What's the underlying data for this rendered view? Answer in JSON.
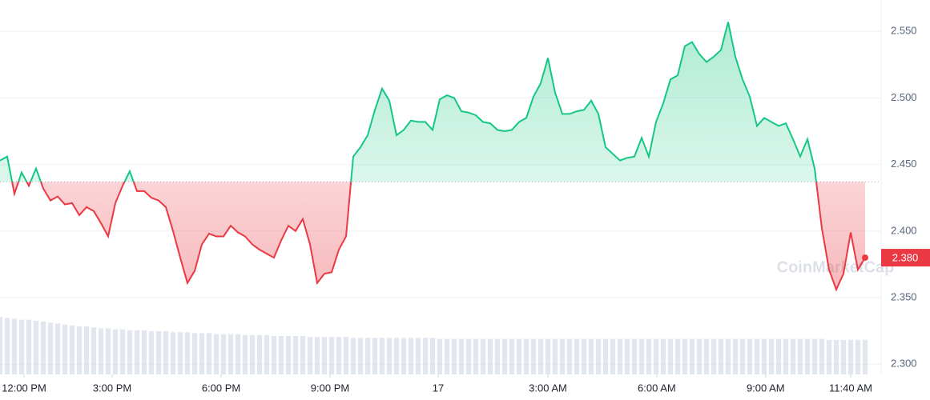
{
  "chart_data": {
    "type": "line",
    "watermark": "CoinMarketCap",
    "price_label": "2.380",
    "baseline": 2.437,
    "above_color": "#16c784",
    "below_color": "#ea3943",
    "volume_color": "#cfd6e4",
    "xlim": [
      0,
      120
    ],
    "xticks": [
      {
        "value": 3.33,
        "label": "12:00 PM"
      },
      {
        "value": 15.56,
        "label": "3:00 PM"
      },
      {
        "value": 30.67,
        "label": "6:00 PM"
      },
      {
        "value": 45.78,
        "label": "9:00 PM"
      },
      {
        "value": 60.78,
        "label": "17"
      },
      {
        "value": 76,
        "label": "3:00 AM"
      },
      {
        "value": 91.1,
        "label": "6:00 AM"
      },
      {
        "value": 106.2,
        "label": "9:00 AM"
      },
      {
        "value": 118,
        "label": "11:40 AM"
      }
    ],
    "ylim": [
      2.2923,
      2.5736
    ],
    "yticks": [
      {
        "value": 2.3,
        "label": "2.300"
      },
      {
        "value": 2.35,
        "label": "2.350"
      },
      {
        "value": 2.4,
        "label": "2.400"
      },
      {
        "value": 2.45,
        "label": "2.450"
      },
      {
        "value": 2.5,
        "label": "2.500"
      },
      {
        "value": 2.55,
        "label": "2.550"
      }
    ],
    "grid": true,
    "values": [
      2.453,
      2.456,
      2.428,
      2.444,
      2.434,
      2.447,
      2.432,
      2.423,
      2.426,
      2.42,
      2.421,
      2.412,
      2.418,
      2.415,
      2.406,
      2.396,
      2.421,
      2.434,
      2.445,
      2.43,
      2.43,
      2.425,
      2.423,
      2.418,
      2.4,
      2.38,
      2.361,
      2.37,
      2.39,
      2.398,
      2.396,
      2.396,
      2.404,
      2.399,
      2.396,
      2.39,
      2.386,
      2.383,
      2.38,
      2.393,
      2.404,
      2.4,
      2.409,
      2.39,
      2.361,
      2.368,
      2.369,
      2.386,
      2.396,
      2.456,
      2.463,
      2.472,
      2.491,
      2.507,
      2.498,
      2.472,
      2.476,
      2.483,
      2.482,
      2.482,
      2.476,
      2.499,
      2.502,
      2.5,
      2.49,
      2.489,
      2.487,
      2.482,
      2.481,
      2.476,
      2.475,
      2.476,
      2.482,
      2.485,
      2.501,
      2.511,
      2.53,
      2.504,
      2.488,
      2.488,
      2.49,
      2.491,
      2.498,
      2.488,
      2.463,
      2.458,
      2.453,
      2.455,
      2.456,
      2.47,
      2.456,
      2.482,
      2.496,
      2.514,
      2.517,
      2.539,
      2.542,
      2.533,
      2.527,
      2.531,
      2.536,
      2.557,
      2.531,
      2.514,
      2.501,
      2.479,
      2.485,
      2.482,
      2.479,
      2.481,
      2.469,
      2.456,
      2.469,
      2.447,
      2.402,
      2.371,
      2.356,
      2.368,
      2.399,
      2.371,
      2.38
    ],
    "volume_lim": [
      0,
      100
    ],
    "volume": [
      60,
      59,
      58,
      57,
      57,
      56,
      55,
      54,
      53,
      52,
      51,
      50,
      50,
      49,
      48,
      48,
      47,
      47,
      46,
      46,
      46,
      45,
      45,
      45,
      44,
      44,
      44,
      43,
      43,
      43,
      42,
      42,
      42,
      42,
      41,
      41,
      41,
      41,
      40,
      40,
      40,
      40,
      40,
      39,
      39,
      39,
      39,
      39,
      39,
      38,
      38,
      38,
      38,
      38,
      38,
      38,
      38,
      38,
      38,
      38,
      38,
      37,
      37,
      37,
      37,
      37,
      37,
      37,
      37,
      37,
      37,
      37,
      37,
      37,
      37,
      37,
      37,
      37,
      37,
      37,
      37,
      37,
      37,
      37,
      37,
      37,
      37,
      37,
      37,
      37,
      37,
      37,
      37,
      37,
      37,
      37,
      37,
      37,
      37,
      37,
      37,
      37,
      37,
      37,
      37,
      37,
      37,
      37,
      37,
      37,
      37,
      37,
      37,
      37,
      37,
      36,
      36,
      36,
      36,
      36,
      36
    ]
  }
}
